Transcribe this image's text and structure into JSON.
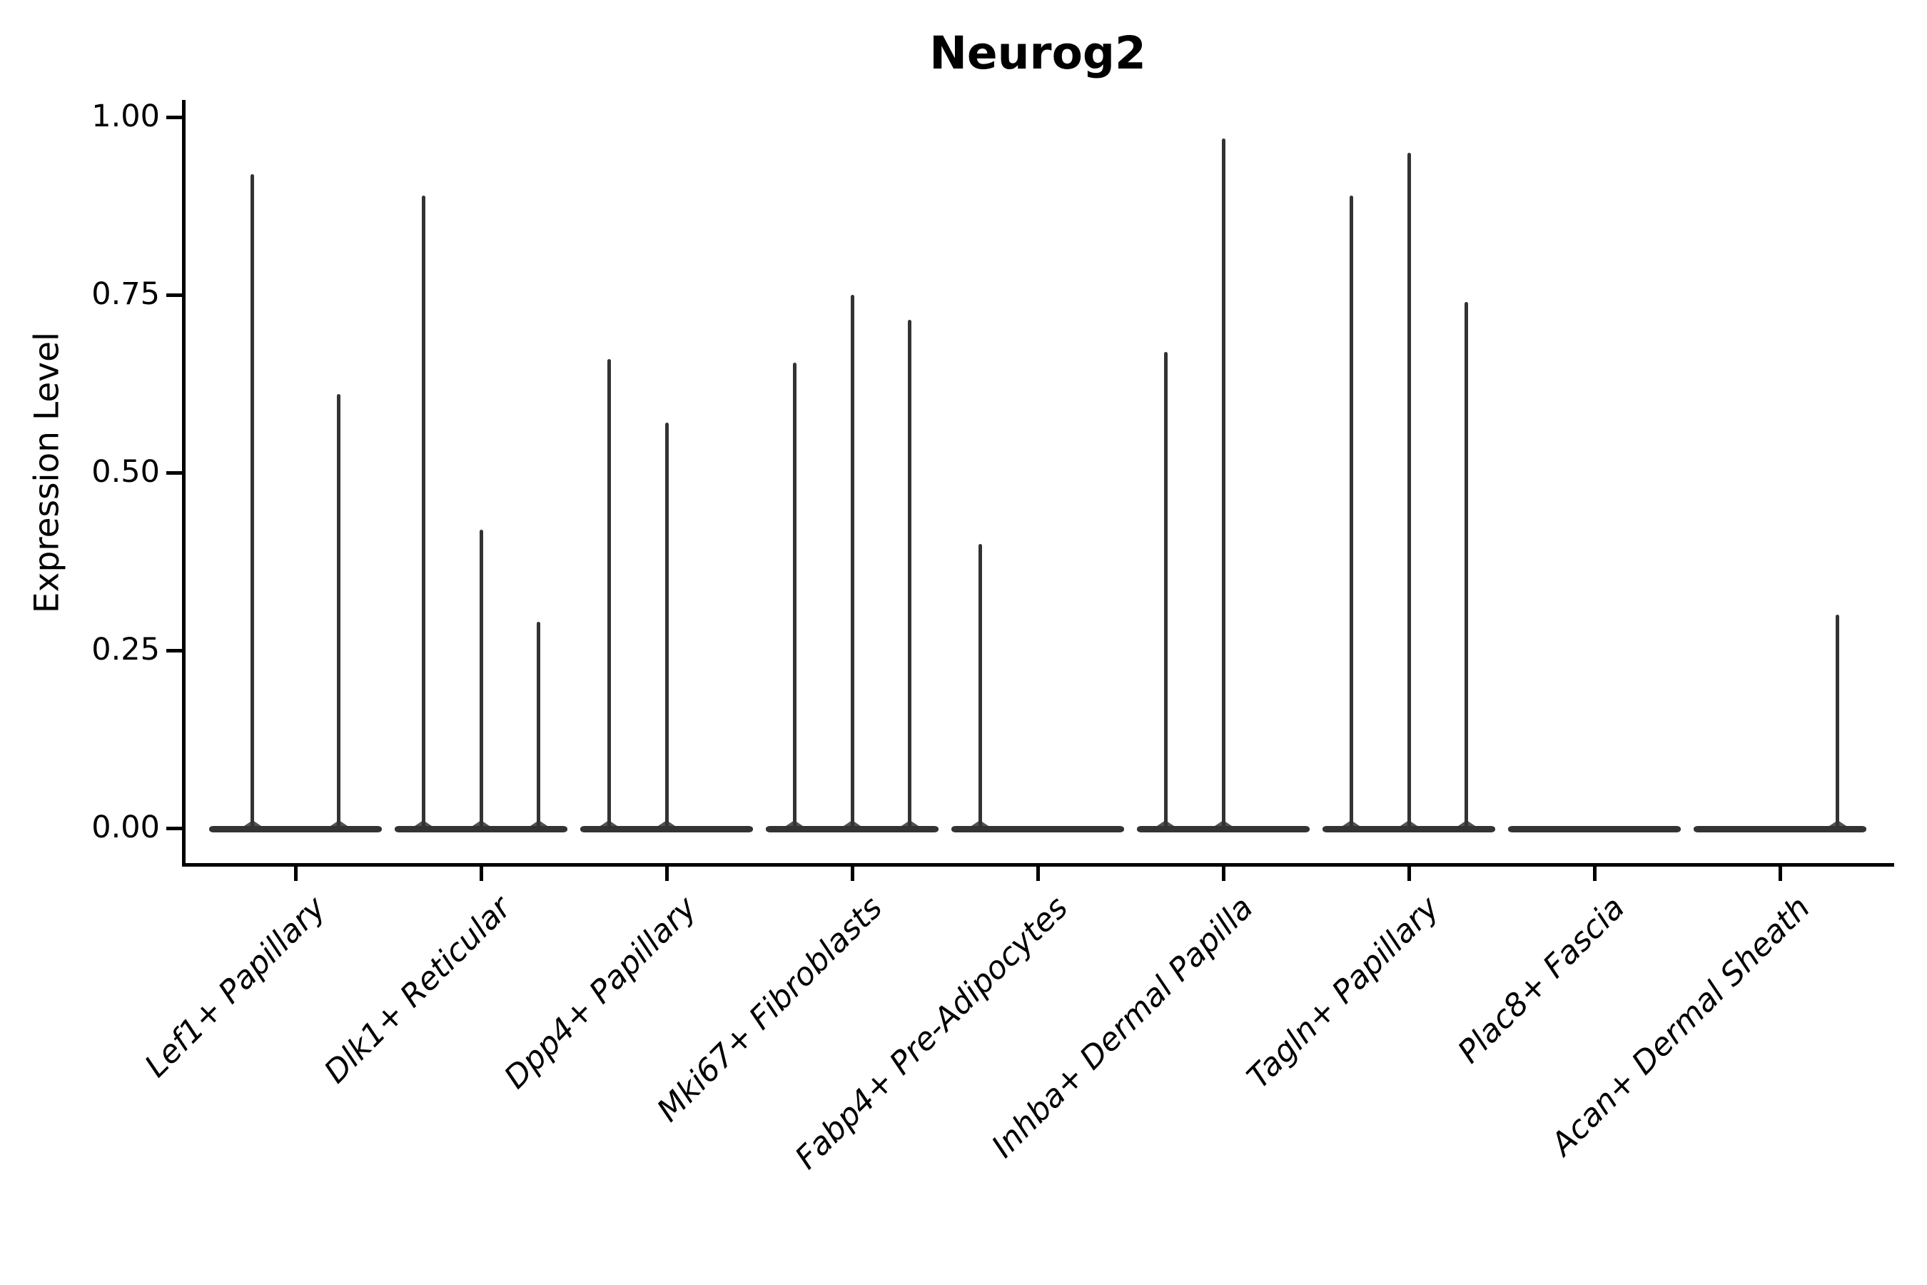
{
  "title": "Neurog2",
  "y_axis": {
    "label": "Expression Level",
    "tick_labels": [
      "1.00",
      "0.75",
      "0.50",
      "0.25",
      "0.00"
    ]
  },
  "colors": {
    "violin": "#333333",
    "axis": "#000000",
    "text": "#000000",
    "background": "#ffffff"
  },
  "chart_data": {
    "type": "violin",
    "title": "Neurog2",
    "xlabel": "",
    "ylabel": "Expression Level",
    "ylim": [
      0,
      1.0
    ],
    "yticks": [
      1.0,
      0.75,
      0.5,
      0.25,
      0.0
    ],
    "ytick_labels": [
      "1.00",
      "0.75",
      "0.50",
      "0.25",
      "0.00"
    ],
    "grid": false,
    "legend_position": "none",
    "description": "Violin plot of Neurog2 expression level per fibroblast cell-type cluster; each cluster shows narrow sub-violins collapsed to a flat base at 0 with thin density spikes reaching the maximum expression values.",
    "categories": [
      "Lef1+ Papillary",
      "Dlk1+ Reticular",
      "Dpp4+ Papillary",
      "Mki67+ Fibroblasts",
      "Fabp4+ Pre-Adipocytes",
      "Inhba+ Dermal Papilla",
      "Tagln+ Papillary",
      "Plac8+ Fascia",
      "Acan+ Dermal Sheath"
    ],
    "series": [
      {
        "name": "Lef1+ Papillary",
        "n_violins": 2,
        "spikes": [
          {
            "slot_frac": -0.25,
            "value": 0.92
          },
          {
            "slot_frac": 0.25,
            "value": 0.61
          }
        ]
      },
      {
        "name": "Dlk1+ Reticular",
        "n_violins": 3,
        "spikes": [
          {
            "slot_frac": -0.3333,
            "value": 0.89
          },
          {
            "slot_frac": 0,
            "value": 0.42
          },
          {
            "slot_frac": 0.3333,
            "value": 0.29
          }
        ]
      },
      {
        "name": "Dpp4+ Papillary",
        "n_violins": 3,
        "spikes": [
          {
            "slot_frac": -0.3333,
            "value": 0.66
          },
          {
            "slot_frac": 0,
            "value": 0.57
          }
        ]
      },
      {
        "name": "Mki67+ Fibroblasts",
        "n_violins": 3,
        "spikes": [
          {
            "slot_frac": -0.3333,
            "value": 0.655
          },
          {
            "slot_frac": 0,
            "value": 0.75
          },
          {
            "slot_frac": 0.3333,
            "value": 0.715
          }
        ]
      },
      {
        "name": "Fabp4+ Pre-Adipocytes",
        "n_violins": 3,
        "spikes": [
          {
            "slot_frac": -0.3333,
            "value": 0.4
          }
        ]
      },
      {
        "name": "Inhba+ Dermal Papilla",
        "n_violins": 3,
        "spikes": [
          {
            "slot_frac": -0.3333,
            "value": 0.67
          },
          {
            "slot_frac": 0,
            "value": 0.97
          }
        ]
      },
      {
        "name": "Tagln+ Papillary",
        "n_violins": 3,
        "spikes": [
          {
            "slot_frac": -0.3333,
            "value": 0.89
          },
          {
            "slot_frac": 0,
            "value": 0.95
          },
          {
            "slot_frac": 0.3333,
            "value": 0.74
          }
        ]
      },
      {
        "name": "Plac8+ Fascia",
        "n_violins": 3,
        "spikes": []
      },
      {
        "name": "Acan+ Dermal Sheath",
        "n_violins": 3,
        "spikes": [
          {
            "slot_frac": 0.3333,
            "value": 0.3
          }
        ]
      }
    ]
  }
}
